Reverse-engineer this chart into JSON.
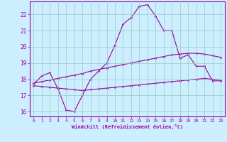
{
  "xlabel": "Windchill (Refroidissement éolien,°C)",
  "ylabel": "",
  "background_color": "#cceeff",
  "line_color": "#990099",
  "xlim": [
    -0.5,
    23.5
  ],
  "ylim": [
    15.7,
    22.8
  ],
  "xticks": [
    0,
    1,
    2,
    3,
    4,
    5,
    6,
    7,
    8,
    9,
    10,
    11,
    12,
    13,
    14,
    15,
    16,
    17,
    18,
    19,
    20,
    21,
    22,
    23
  ],
  "yticks": [
    16,
    17,
    18,
    19,
    20,
    21,
    22
  ],
  "line1_x": [
    0,
    1,
    2,
    3,
    4,
    5,
    6,
    7,
    8,
    9,
    10,
    11,
    12,
    13,
    14,
    15,
    16,
    17,
    18,
    19,
    20,
    21,
    22,
    23
  ],
  "line1_y": [
    17.7,
    18.2,
    18.4,
    17.4,
    16.1,
    16.0,
    17.0,
    18.0,
    18.5,
    19.0,
    20.1,
    21.4,
    21.8,
    22.5,
    22.6,
    21.9,
    21.0,
    21.0,
    19.3,
    19.5,
    18.8,
    18.8,
    17.9,
    17.9
  ],
  "line2_x": [
    0,
    1,
    2,
    3,
    4,
    5,
    6,
    7,
    8,
    9,
    10,
    11,
    12,
    13,
    14,
    15,
    16,
    17,
    18,
    19,
    20,
    21,
    22,
    23
  ],
  "line2_y": [
    17.75,
    17.85,
    17.95,
    18.05,
    18.15,
    18.25,
    18.35,
    18.5,
    18.6,
    18.7,
    18.8,
    18.9,
    19.0,
    19.1,
    19.2,
    19.3,
    19.4,
    19.5,
    19.55,
    19.6,
    19.6,
    19.55,
    19.45,
    19.35
  ],
  "line3_x": [
    0,
    1,
    2,
    3,
    4,
    5,
    6,
    7,
    8,
    9,
    10,
    11,
    12,
    13,
    14,
    15,
    16,
    17,
    18,
    19,
    20,
    21,
    22,
    23
  ],
  "line3_y": [
    17.6,
    17.55,
    17.5,
    17.45,
    17.4,
    17.35,
    17.3,
    17.35,
    17.4,
    17.45,
    17.5,
    17.55,
    17.6,
    17.65,
    17.7,
    17.75,
    17.8,
    17.85,
    17.9,
    17.95,
    18.0,
    18.05,
    18.0,
    17.95
  ],
  "grid_color": "#99ccbb",
  "marker": "D",
  "markersize": 1.8,
  "linewidth": 0.8
}
